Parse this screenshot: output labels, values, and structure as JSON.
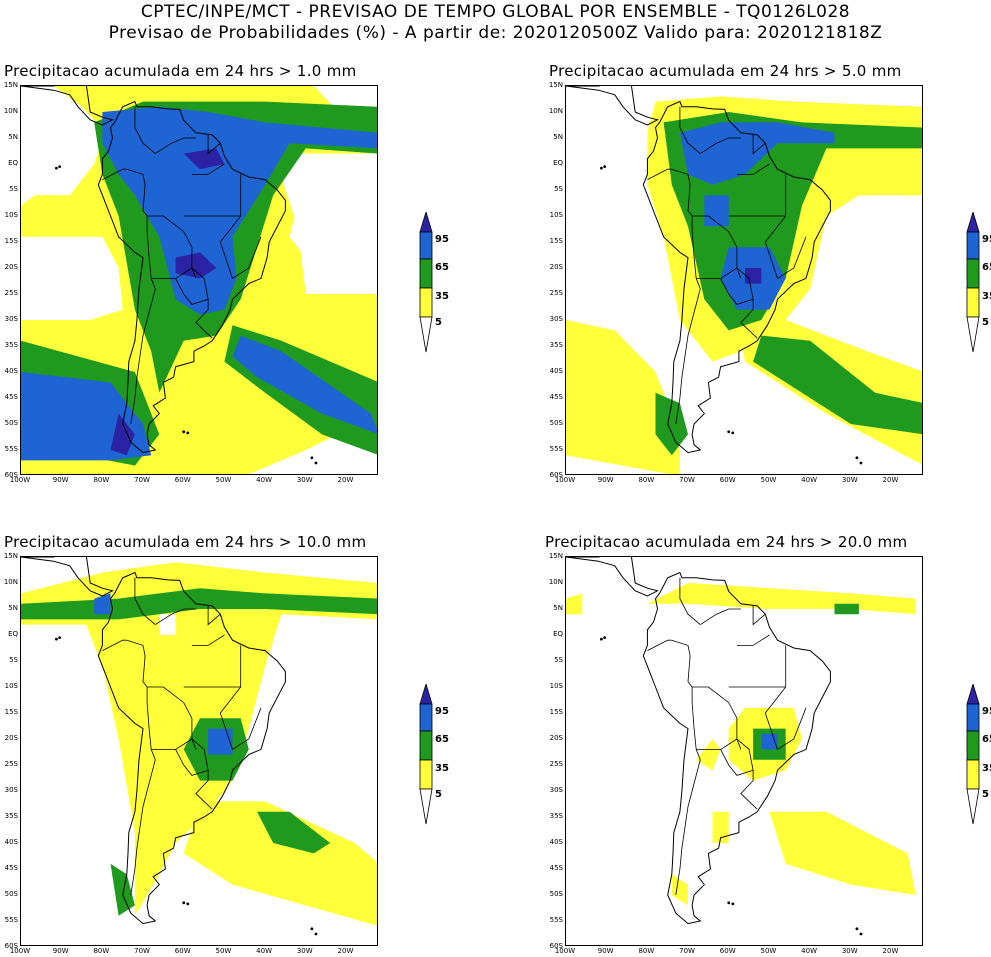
{
  "header": {
    "line1": "CPTEC/INPE/MCT - PREVISAO DE TEMPO GLOBAL POR ENSEMBLE - TQ0126L028",
    "line2": "Previsao de Probabilidades (%) -  A partir de: 2020120500Z  Valido para: 2020121818Z"
  },
  "colors": {
    "yellow": "#ffff3a",
    "green": "#1f9a1f",
    "blue": "#1e64d2",
    "darkblue": "#2b22a4",
    "white": "#ffffff"
  },
  "axes": {
    "lat_labels": [
      "15N",
      "10N",
      "5N",
      "EQ",
      "5S",
      "10S",
      "15S",
      "20S",
      "25S",
      "30S",
      "35S",
      "40S",
      "45S",
      "50S",
      "55S",
      "60S"
    ],
    "lon_labels": [
      "100W",
      "90W",
      "80W",
      "70W",
      "60W",
      "50W",
      "40W",
      "30W",
      "20W"
    ]
  },
  "colorbar": {
    "levels": [
      "95",
      "65",
      "35",
      "5"
    ]
  },
  "panels": [
    {
      "title": "Precipitacao acumulada em 24 hrs > 1.0 mm",
      "threshold_mm": 1.0
    },
    {
      "title": "Precipitacao acumulada em 24 hrs > 5.0 mm",
      "threshold_mm": 5.0
    },
    {
      "title": "Precipitacao acumulada em 24 hrs > 10.0 mm",
      "threshold_mm": 10.0
    },
    {
      "title": "Precipitacao acumulada em 24 hrs > 20.0 mm",
      "threshold_mm": 20.0
    }
  ]
}
